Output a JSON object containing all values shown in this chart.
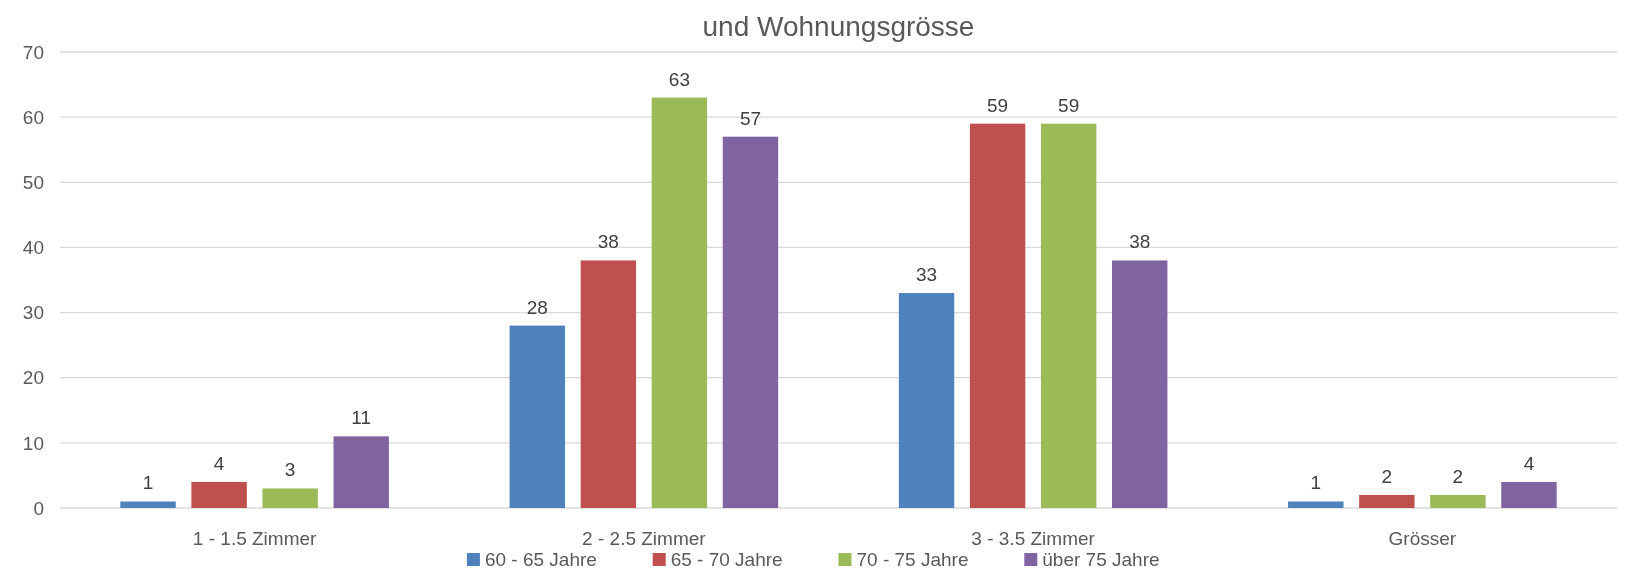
{
  "chart_data": {
    "type": "bar",
    "title": "und Wohnungsgrösse",
    "categories": [
      "1 - 1.5 Zimmer",
      "2 - 2.5 Zimmer",
      "3 - 3.5 Zimmer",
      "Grösser"
    ],
    "series": [
      {
        "name": "60 - 65 Jahre",
        "color": "#4f81bd",
        "values": [
          1,
          28,
          33,
          1
        ]
      },
      {
        "name": "65 - 70 Jahre",
        "color": "#c0504d",
        "values": [
          4,
          38,
          59,
          2
        ]
      },
      {
        "name": "70 - 75 Jahre",
        "color": "#9bbb59",
        "values": [
          3,
          63,
          59,
          2
        ]
      },
      {
        "name": "über 75 Jahre",
        "color": "#8064a2",
        "values": [
          11,
          57,
          38,
          4
        ]
      }
    ],
    "ylim": [
      0,
      70
    ],
    "yticks": [
      0,
      10,
      20,
      30,
      40,
      50,
      60,
      70
    ],
    "grid": "y",
    "legend": "bottom",
    "data_labels": true
  }
}
